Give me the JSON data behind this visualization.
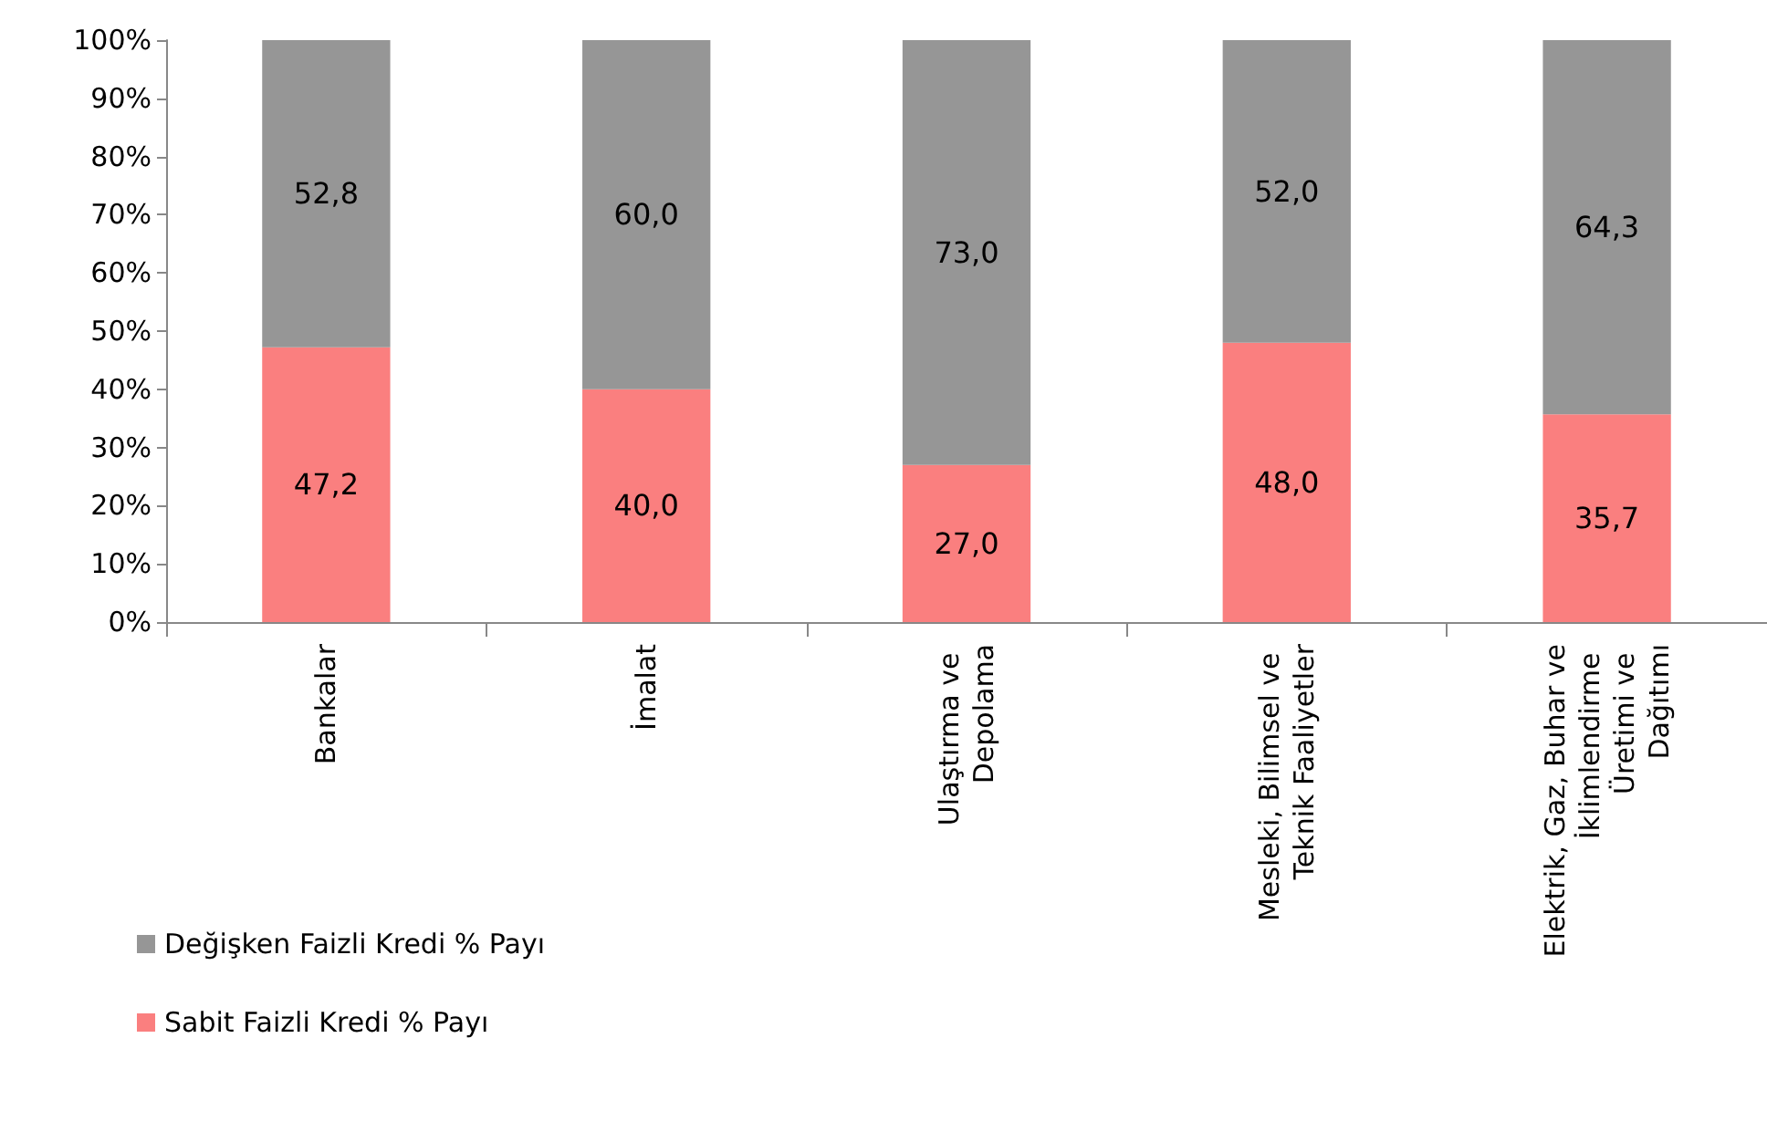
{
  "chart_data": {
    "type": "bar",
    "stacked": true,
    "categories": [
      "Bankalar",
      "İmalat",
      "Ulaştırma ve Depolama",
      "Mesleki, Bilimsel ve Teknik Faaliyetler",
      "Elektrik, Gaz, Buhar ve İklimlendirme Üretimi ve Dağıtımı"
    ],
    "series": [
      {
        "name": "Sabit Faizli Kredi % Payı",
        "color": "#fa7f7f",
        "values": [
          47.2,
          40.0,
          27.0,
          48.0,
          35.7
        ],
        "value_labels": [
          "47,2",
          "40,0",
          "27,0",
          "48,0",
          "35,7"
        ]
      },
      {
        "name": "Değişken Faizli Kredi % Payı",
        "color": "#969696",
        "values": [
          52.8,
          60.0,
          73.0,
          52.0,
          64.3
        ],
        "value_labels": [
          "52,8",
          "60,0",
          "73,0",
          "52,0",
          "64,3"
        ]
      }
    ],
    "ylim": [
      0,
      100
    ],
    "yticks": [
      {
        "value": 0,
        "label": "0%"
      },
      {
        "value": 10,
        "label": "10%"
      },
      {
        "value": 20,
        "label": "20%"
      },
      {
        "value": 30,
        "label": "30%"
      },
      {
        "value": 40,
        "label": "40%"
      },
      {
        "value": 50,
        "label": "50%"
      },
      {
        "value": 60,
        "label": "60%"
      },
      {
        "value": 70,
        "label": "70%"
      },
      {
        "value": 80,
        "label": "80%"
      },
      {
        "value": 90,
        "label": "90%"
      },
      {
        "value": 100,
        "label": "100%"
      }
    ],
    "grid": false,
    "legend": "bottom left"
  }
}
